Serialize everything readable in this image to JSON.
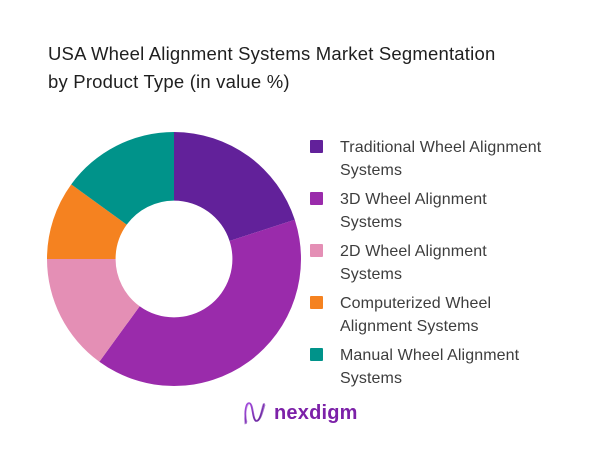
{
  "header": {
    "title": "USA Wheel Alignment Systems Market Segmentation by Product Type (in value %)",
    "title_lines": [
      "USA Wheel Alignment Systems Market Segmentation",
      "by Product Type (in value %)"
    ]
  },
  "chart_data": {
    "type": "pie",
    "subtype": "donut",
    "title": "USA Wheel Alignment Systems Market Segmentation by Product Type (in value %)",
    "unit": "value %",
    "categories": [
      "Traditional Wheel Alignment Systems",
      "3D Wheel Alignment Systems",
      "2D Wheel Alignment Systems",
      "Computerized Wheel Alignment Systems",
      "Manual Wheel Alignment Systems"
    ],
    "values": [
      20,
      40,
      15,
      10,
      15
    ],
    "colors": [
      "#62219a",
      "#9a2bab",
      "#e48fb5",
      "#f58220",
      "#00938a"
    ],
    "legend_position": "right",
    "legend_label_lines": [
      [
        "Traditional Wheel Alignment",
        "Systems"
      ],
      [
        "3D Wheel Alignment",
        "Systems"
      ],
      [
        "2D Wheel Alignment",
        "Systems"
      ],
      [
        "Computerized Wheel",
        "Alignment Systems"
      ],
      [
        "Manual Wheel Alignment",
        "Systems"
      ]
    ],
    "start_angle_deg": 0,
    "direction": "clockwise",
    "inner_radius_ratio": 0.46,
    "data_labels": "none"
  },
  "footer": {
    "logo_text": "nexdigm"
  },
  "colors": {
    "background": "#ffffff",
    "title_text": "#1f1f1f",
    "legend_text": "#3d3d3d",
    "logo_text": "#7c21a8"
  }
}
